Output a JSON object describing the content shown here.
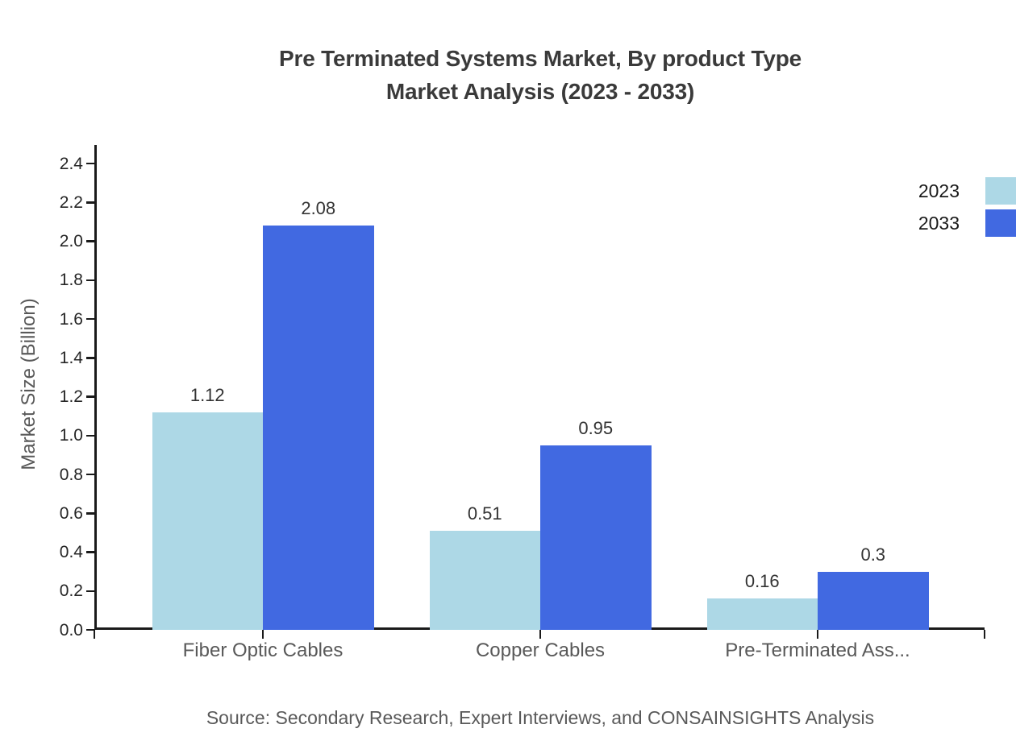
{
  "title": {
    "line1": "Pre Terminated Systems Market, By product Type",
    "line2": "Market Analysis (2023 - 2033)"
  },
  "source_note": "Source: Secondary Research, Expert Interviews, and CONSAINSIGHTS Analysis",
  "chart_data": {
    "type": "bar",
    "title": "Pre Terminated Systems Market, By product Type Market Analysis (2023 - 2033)",
    "categories": [
      "Fiber Optic Cables",
      "Copper Cables",
      "Pre-Terminated Ass..."
    ],
    "series": [
      {
        "name": "2023",
        "color": "#ADD8E6",
        "values": [
          1.12,
          0.51,
          0.16
        ]
      },
      {
        "name": "2033",
        "color": "#4169E1",
        "values": [
          2.08,
          0.95,
          0.3
        ]
      }
    ],
    "xlabel": "",
    "ylabel": "Market Size (Billion)",
    "ylim": [
      0,
      2.4
    ],
    "ytick_step": 0.2,
    "ytick_labels": [
      "0.0",
      "0.2",
      "0.4",
      "0.6",
      "0.8",
      "1.0",
      "1.2",
      "1.4",
      "1.6",
      "1.8",
      "2.0",
      "2.2",
      "2.4"
    ],
    "grid": false,
    "value_labels": true,
    "legend_position": "top-right"
  },
  "colors": {
    "background": "#ffffff",
    "axis": "#1a1a1a",
    "title_text": "#3a3a3a",
    "muted_text": "#595959",
    "series_2023": "#ADD8E6",
    "series_2033": "#4169E1"
  }
}
